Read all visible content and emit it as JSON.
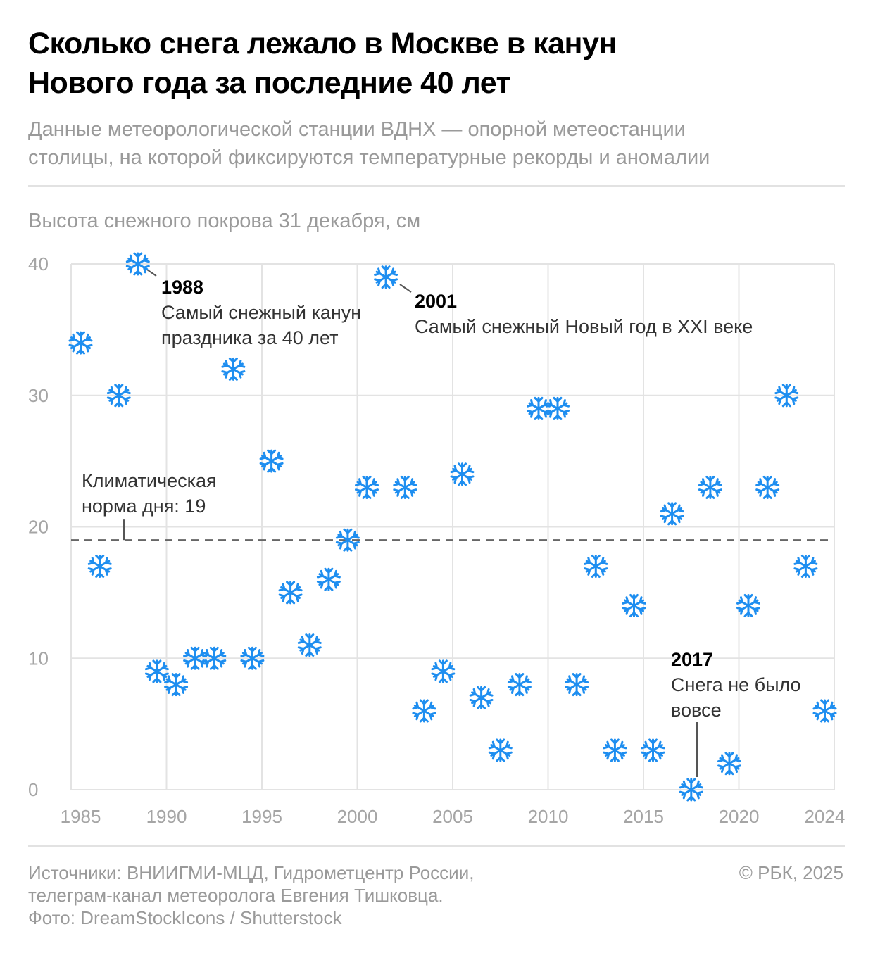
{
  "header": {
    "title_line1": "Сколько снега лежало в Москве в канун",
    "title_line2": "Нового года за последние 40 лет",
    "subtitle_line1": "Данные метеорологической станции ВДНХ — опорной метеостанции",
    "subtitle_line2": "столицы, на которой фиксируются температурные рекорды и аномалии"
  },
  "chart_data": {
    "type": "scatter",
    "title": "Высота снежного покрова 31 декабря, см",
    "marker": "snowflake",
    "marker_color": "#1e8ef0",
    "grid": true,
    "xlim": [
      1985,
      2025
    ],
    "ylim": [
      0,
      40
    ],
    "x_ticks": [
      "1985",
      "1990",
      "1995",
      "2000",
      "2005",
      "2010",
      "2015",
      "2020",
      "2024"
    ],
    "x_tick_values": [
      1985,
      1990,
      1995,
      2000,
      2005,
      2010,
      2015,
      2020,
      2024
    ],
    "y_ticks": [
      "0",
      "10",
      "20",
      "30",
      "40"
    ],
    "y_tick_values": [
      0,
      10,
      20,
      30,
      40
    ],
    "x": [
      1985,
      1986,
      1987,
      1988,
      1989,
      1990,
      1991,
      1992,
      1993,
      1994,
      1995,
      1996,
      1997,
      1998,
      1999,
      2000,
      2001,
      2002,
      2003,
      2004,
      2005,
      2006,
      2007,
      2008,
      2009,
      2010,
      2011,
      2012,
      2013,
      2014,
      2015,
      2016,
      2017,
      2018,
      2019,
      2020,
      2021,
      2022,
      2023,
      2024
    ],
    "values": [
      34,
      17,
      30,
      40,
      9,
      8,
      10,
      10,
      32,
      10,
      25,
      15,
      11,
      16,
      19,
      23,
      39,
      23,
      6,
      9,
      24,
      7,
      3,
      8,
      29,
      29,
      8,
      17,
      3,
      14,
      3,
      21,
      0,
      23,
      2,
      14,
      23,
      30,
      17,
      6
    ],
    "reference_line": {
      "value": 19,
      "label_line1": "Климатическая",
      "label_line2": "норма дня: 19"
    },
    "annotations": [
      {
        "year": "1988",
        "text_lines": [
          "Самый снежный канун",
          "праздника за 40 лет"
        ]
      },
      {
        "year": "2001",
        "text_lines": [
          "Самый снежный Новый год в XXI веке"
        ]
      },
      {
        "year": "2017",
        "text_lines": [
          "Снега не было",
          "вовсе"
        ]
      }
    ]
  },
  "footer": {
    "sources_line1": "Источники: ВНИИГМИ-МЦД, Гидрометцентр России,",
    "sources_line2": "телеграм-канал метеоролога Евгения Тишковца.",
    "photo_credit": "Фото: DreamStockIcons / Shutterstock",
    "copyright": "© РБК, 2025"
  }
}
